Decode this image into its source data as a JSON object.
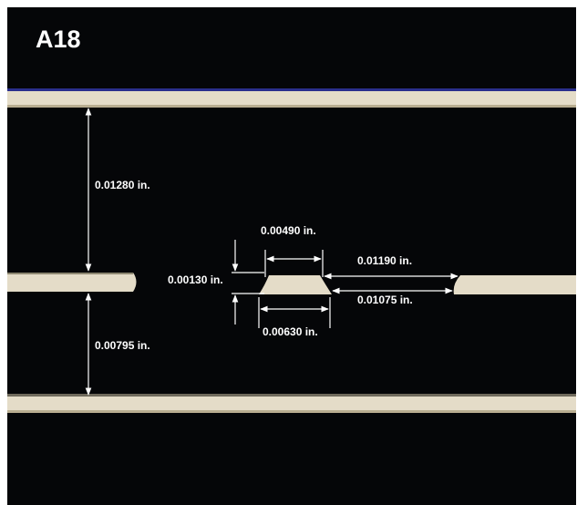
{
  "specimen": {
    "id": "A18"
  },
  "measurements": {
    "top_gap": "0.01280 in.",
    "bottom_gap": "0.00795 in.",
    "pad_top_width": "0.00490 in.",
    "pad_bottom_width": "0.00630 in.",
    "pad_thickness": "0.00130 in.",
    "right_gap_top": "0.01190 in.",
    "right_gap_bottom": "0.01075 in."
  },
  "colors": {
    "background": "#050608",
    "copper": "#e4dcc8",
    "edge": "#2a2e8c",
    "dimension_line": "#ffffff"
  }
}
